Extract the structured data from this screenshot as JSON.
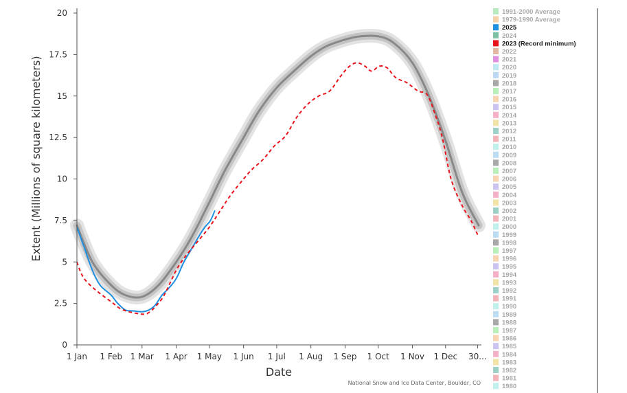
{
  "chart_data": {
    "type": "line",
    "xlabel": "Date",
    "ylabel": "Extent (Millions of square kilometers)",
    "credit": "National Snow and Ice Data Center, Boulder, CO",
    "xlim": [
      1,
      365
    ],
    "ylim": [
      0,
      20
    ],
    "x_ticks": [
      {
        "label": "1 Jan",
        "day": 1
      },
      {
        "label": "1 Feb",
        "day": 32
      },
      {
        "label": "1 Mar",
        "day": 60
      },
      {
        "label": "1 Apr",
        "day": 91
      },
      {
        "label": "1 May",
        "day": 121
      },
      {
        "label": "1 Jun",
        "day": 152
      },
      {
        "label": "1 Jul",
        "day": 182
      },
      {
        "label": "1 Aug",
        "day": 213
      },
      {
        "label": "1 Sep",
        "day": 244
      },
      {
        "label": "1 Oct",
        "day": 274
      },
      {
        "label": "1 Nov",
        "day": 305
      },
      {
        "label": "1 Dec",
        "day": 335
      },
      {
        "label": "30...",
        "day": 364
      }
    ],
    "y_ticks": [
      {
        "label": "0",
        "value": 0
      },
      {
        "label": "2.5",
        "value": 2.5
      },
      {
        "label": "5",
        "value": 5
      },
      {
        "label": "7.5",
        "value": 7.5
      },
      {
        "label": "10",
        "value": 10
      },
      {
        "label": "12.5",
        "value": 12.5
      },
      {
        "label": "15",
        "value": 15
      },
      {
        "label": "17.5",
        "value": 17.5
      },
      {
        "label": "20",
        "value": 20
      }
    ],
    "series": [
      {
        "name": "1991-2000 Average",
        "color": "#888888",
        "style": "band",
        "x": [
          1,
          15,
          32,
          45,
          60,
          75,
          91,
          105,
          121,
          135,
          152,
          166,
          182,
          196,
          213,
          227,
          244,
          258,
          274,
          288,
          305,
          320,
          335,
          350,
          365
        ],
        "values": [
          7.2,
          5.0,
          3.6,
          3.0,
          2.9,
          3.6,
          5.0,
          6.5,
          8.6,
          10.5,
          12.5,
          14.1,
          15.5,
          16.4,
          17.4,
          18.0,
          18.4,
          18.6,
          18.6,
          18.2,
          17.0,
          15.0,
          12.3,
          9.2,
          7.2
        ]
      },
      {
        "name": "2025",
        "color": "#1f8fe0",
        "style": "solid",
        "x": [
          1,
          8,
          15,
          22,
          32,
          38,
          45,
          52,
          60,
          66,
          72,
          78,
          84,
          91,
          98,
          105,
          112,
          117,
          122,
          126
        ],
        "values": [
          7.1,
          5.8,
          4.5,
          3.6,
          3.0,
          2.5,
          2.1,
          2.05,
          2.0,
          2.1,
          2.4,
          3.0,
          3.4,
          4.0,
          5.0,
          5.8,
          6.6,
          7.1,
          7.5,
          8.1
        ]
      },
      {
        "name": "2023 (Record minimum)",
        "color": "#e8141d",
        "style": "dashed",
        "x": [
          1,
          5,
          10,
          20,
          32,
          40,
          48,
          55,
          60,
          65,
          72,
          80,
          91,
          100,
          110,
          121,
          130,
          140,
          152,
          160,
          170,
          180,
          190,
          200,
          210,
          220,
          230,
          240,
          248,
          255,
          262,
          268,
          275,
          282,
          290,
          300,
          310,
          318,
          325,
          332,
          340,
          350,
          358,
          365
        ],
        "values": [
          5.0,
          4.3,
          3.8,
          3.2,
          2.6,
          2.2,
          2.0,
          1.9,
          1.85,
          1.9,
          2.3,
          3.0,
          4.5,
          5.4,
          6.2,
          7.1,
          8.0,
          9.0,
          10.0,
          10.6,
          11.2,
          12.0,
          12.6,
          13.7,
          14.5,
          15.0,
          15.3,
          16.2,
          16.8,
          17.0,
          16.8,
          16.5,
          16.8,
          16.7,
          16.1,
          15.8,
          15.3,
          15.1,
          14.0,
          12.5,
          10.0,
          8.4,
          7.5,
          6.5
        ]
      }
    ],
    "legend": [
      {
        "label": "1991-2000 Average",
        "color": "#b8ecc0",
        "active": false
      },
      {
        "label": "1979-1990 Average",
        "color": "#f6d2a8",
        "active": false
      },
      {
        "label": "2025",
        "color": "#1f8fe0",
        "active": true
      },
      {
        "label": "2024",
        "color": "#7bc1a4",
        "active": false
      },
      {
        "label": "2023 (Record minimum)",
        "color": "#e8141d",
        "active": true
      },
      {
        "label": "2022",
        "color": "#e2b7a1",
        "active": false
      },
      {
        "label": "2021",
        "color": "#e08fe0",
        "active": false
      },
      {
        "label": "2020",
        "color": "#bfe9f2",
        "active": false
      },
      {
        "label": "2019",
        "color": "#bcd7f2",
        "active": false
      },
      {
        "label": "2018",
        "color": "#a8a8a8",
        "active": false
      },
      {
        "label": "2017",
        "color": "#b9f0b9",
        "active": false
      },
      {
        "label": "2016",
        "color": "#f8d4b0",
        "active": false
      },
      {
        "label": "2015",
        "color": "#cbc3f0",
        "active": false
      },
      {
        "label": "2014",
        "color": "#f4b0c6",
        "active": false
      },
      {
        "label": "2013",
        "color": "#f2e4a6",
        "active": false
      },
      {
        "label": "2012",
        "color": "#9fd0c7",
        "active": false
      },
      {
        "label": "2011",
        "color": "#f2b4b8",
        "active": false
      },
      {
        "label": "2010",
        "color": "#c2f0ec",
        "active": false
      },
      {
        "label": "2009",
        "color": "#bcdcf4",
        "active": false
      },
      {
        "label": "2008",
        "color": "#a8a8a8",
        "active": false
      },
      {
        "label": "2007",
        "color": "#b9f0b9",
        "active": false
      },
      {
        "label": "2006",
        "color": "#f8d4b0",
        "active": false
      },
      {
        "label": "2005",
        "color": "#cbc3f0",
        "active": false
      },
      {
        "label": "2004",
        "color": "#f4b0c6",
        "active": false
      },
      {
        "label": "2003",
        "color": "#f2e4a6",
        "active": false
      },
      {
        "label": "2002",
        "color": "#9fd0c7",
        "active": false
      },
      {
        "label": "2001",
        "color": "#f2b4b8",
        "active": false
      },
      {
        "label": "2000",
        "color": "#c2f0ec",
        "active": false
      },
      {
        "label": "1999",
        "color": "#bcdcf4",
        "active": false
      },
      {
        "label": "1998",
        "color": "#a8a8a8",
        "active": false
      },
      {
        "label": "1997",
        "color": "#b9f0b9",
        "active": false
      },
      {
        "label": "1996",
        "color": "#f8d4b0",
        "active": false
      },
      {
        "label": "1995",
        "color": "#cbc3f0",
        "active": false
      },
      {
        "label": "1994",
        "color": "#f4b0c6",
        "active": false
      },
      {
        "label": "1993",
        "color": "#f2e4a6",
        "active": false
      },
      {
        "label": "1992",
        "color": "#9fd0c7",
        "active": false
      },
      {
        "label": "1991",
        "color": "#f2b4b8",
        "active": false
      },
      {
        "label": "1990",
        "color": "#c2f0ec",
        "active": false
      },
      {
        "label": "1989",
        "color": "#bcdcf4",
        "active": false
      },
      {
        "label": "1988",
        "color": "#a8a8a8",
        "active": false
      },
      {
        "label": "1987",
        "color": "#b9f0b9",
        "active": false
      },
      {
        "label": "1986",
        "color": "#f8d4b0",
        "active": false
      },
      {
        "label": "1985",
        "color": "#cbc3f0",
        "active": false
      },
      {
        "label": "1984",
        "color": "#f4b0c6",
        "active": false
      },
      {
        "label": "1983",
        "color": "#f2e4a6",
        "active": false
      },
      {
        "label": "1982",
        "color": "#9fd0c7",
        "active": false
      },
      {
        "label": "1981",
        "color": "#f2b4b8",
        "active": false
      },
      {
        "label": "1980",
        "color": "#c2f0ec",
        "active": false
      }
    ],
    "colors": {
      "axis": "#555555",
      "band_outer": "#e3e3e3",
      "band_inner": "#c4c4c4",
      "legend_inactive_text": "#a9a9a9",
      "legend_active_text": "#1a1a1a"
    }
  }
}
